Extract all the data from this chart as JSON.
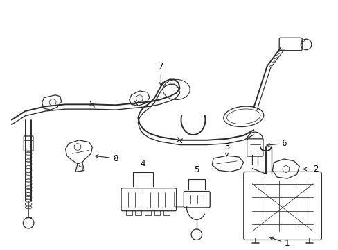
{
  "background_color": "#ffffff",
  "line_color": "#2a2a2a",
  "label_color": "#000000",
  "fig_width": 4.89,
  "fig_height": 3.6,
  "dpi": 100,
  "label_fontsize": 8.5,
  "lw_cable": 1.4,
  "lw_part": 0.9,
  "lw_thin": 0.55
}
